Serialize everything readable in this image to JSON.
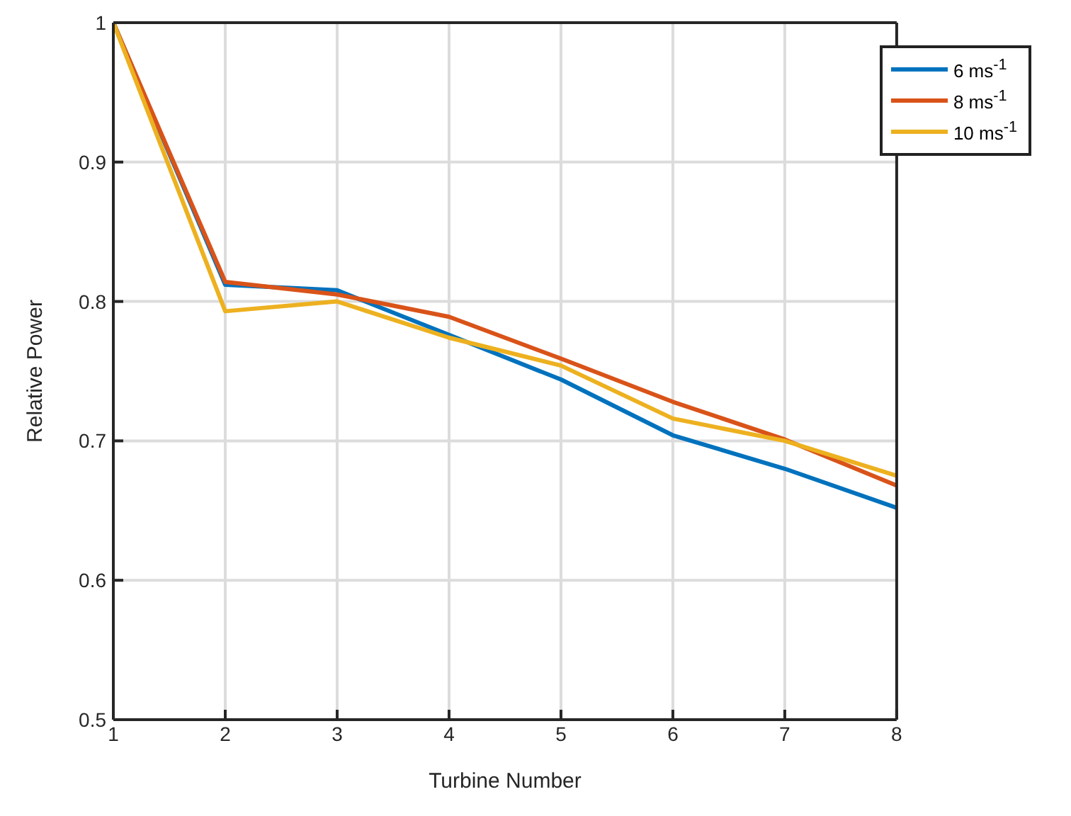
{
  "chart_data": {
    "type": "line",
    "xlabel": "Turbine Number",
    "ylabel": "Relative Power",
    "x": [
      1,
      2,
      3,
      4,
      5,
      6,
      7,
      8
    ],
    "series": [
      {
        "name": "6 ms$^{-1}$",
        "color": "#0072bd",
        "values": [
          1,
          0.812,
          0.808,
          0.776,
          0.744,
          0.704,
          0.68,
          0.652
        ]
      },
      {
        "name": "8 ms$^{-1}$",
        "color": "#d95319",
        "values": [
          1,
          0.814,
          0.805,
          0.789,
          0.759,
          0.728,
          0.701,
          0.668
        ]
      },
      {
        "name": "10 ms$^{-1}$",
        "color": "#edb120",
        "values": [
          1,
          0.793,
          0.8,
          0.774,
          0.754,
          0.716,
          0.7,
          0.675
        ]
      }
    ],
    "xlim": [
      1,
      8
    ],
    "xticks": [
      1,
      2,
      3,
      4,
      5,
      6,
      7,
      8
    ],
    "ylim": [
      0.5,
      1
    ],
    "yticks": [
      0.5,
      0.6,
      0.7,
      0.8,
      0.9,
      1
    ],
    "grid": true,
    "legend": "top right",
    "marker": "none",
    "line_style": "solid"
  }
}
